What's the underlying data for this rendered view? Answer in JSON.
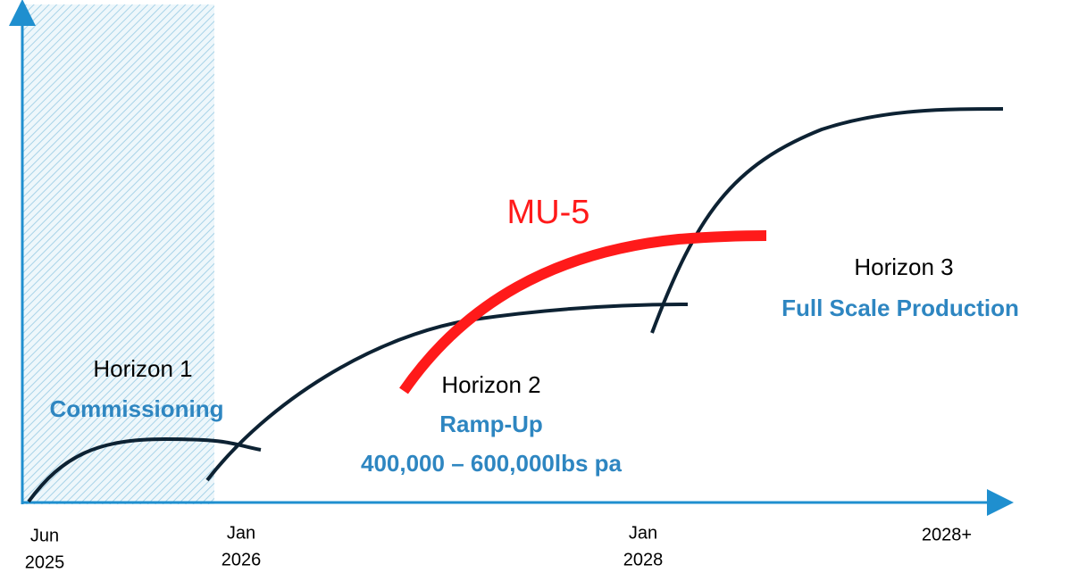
{
  "highlight": "MU-5",
  "horizons": [
    {
      "title": "Horizon 1",
      "subtitle": "Commissioning"
    },
    {
      "title": "Horizon 2",
      "subtitle": "Ramp-Up",
      "detail": "400,000 – 600,000lbs pa"
    },
    {
      "title": "Horizon 3",
      "subtitle": "Full Scale Production"
    }
  ],
  "x_labels": [
    [
      "Jun",
      "2025"
    ],
    [
      "Jan",
      "2026"
    ],
    [
      "Jan",
      "2028"
    ],
    [
      "2028+"
    ]
  ]
}
